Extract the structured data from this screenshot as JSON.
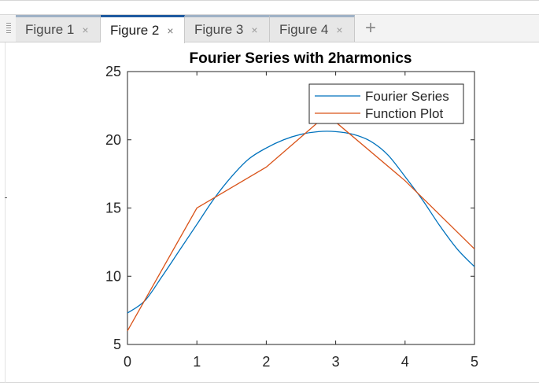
{
  "tabs": [
    {
      "label": "Figure 1",
      "close": "×",
      "active": false
    },
    {
      "label": "Figure 2",
      "close": "×",
      "active": true
    },
    {
      "label": "Figure 3",
      "close": "×",
      "active": false
    },
    {
      "label": "Figure 4",
      "close": "×",
      "active": false
    }
  ],
  "add_tab_symbol": "+",
  "colors": {
    "fourier": "#0072bd",
    "function": "#d95319",
    "active_tab": "#1e5aa0"
  },
  "chart_data": {
    "type": "line",
    "title": "Fourier Series with 2harmonics",
    "xlabel": "",
    "ylabel": "",
    "xlim": [
      0,
      5
    ],
    "ylim": [
      5,
      25
    ],
    "xticks": [
      0,
      1,
      2,
      3,
      4,
      5
    ],
    "yticks": [
      5,
      10,
      15,
      20,
      25
    ],
    "grid": false,
    "legend_position": "top-right",
    "series": [
      {
        "name": "Fourier Series",
        "color": "#0072bd",
        "x": [
          0,
          0.25,
          0.5,
          0.75,
          1,
          1.25,
          1.5,
          1.75,
          2,
          2.25,
          2.5,
          2.75,
          3,
          3.25,
          3.5,
          3.75,
          4,
          4.25,
          4.5,
          4.75,
          5
        ],
        "y": [
          7.3,
          8.2,
          10.0,
          11.9,
          13.8,
          15.7,
          17.3,
          18.6,
          19.4,
          20.0,
          20.4,
          20.6,
          20.6,
          20.4,
          19.9,
          18.9,
          17.3,
          15.6,
          13.7,
          12.0,
          10.7
        ]
      },
      {
        "name": "Function Plot",
        "color": "#d95319",
        "x": [
          0,
          1,
          2,
          2.75,
          3,
          4,
          5
        ],
        "y": [
          6,
          15,
          18,
          21.3,
          21.3,
          17,
          12
        ]
      }
    ]
  }
}
